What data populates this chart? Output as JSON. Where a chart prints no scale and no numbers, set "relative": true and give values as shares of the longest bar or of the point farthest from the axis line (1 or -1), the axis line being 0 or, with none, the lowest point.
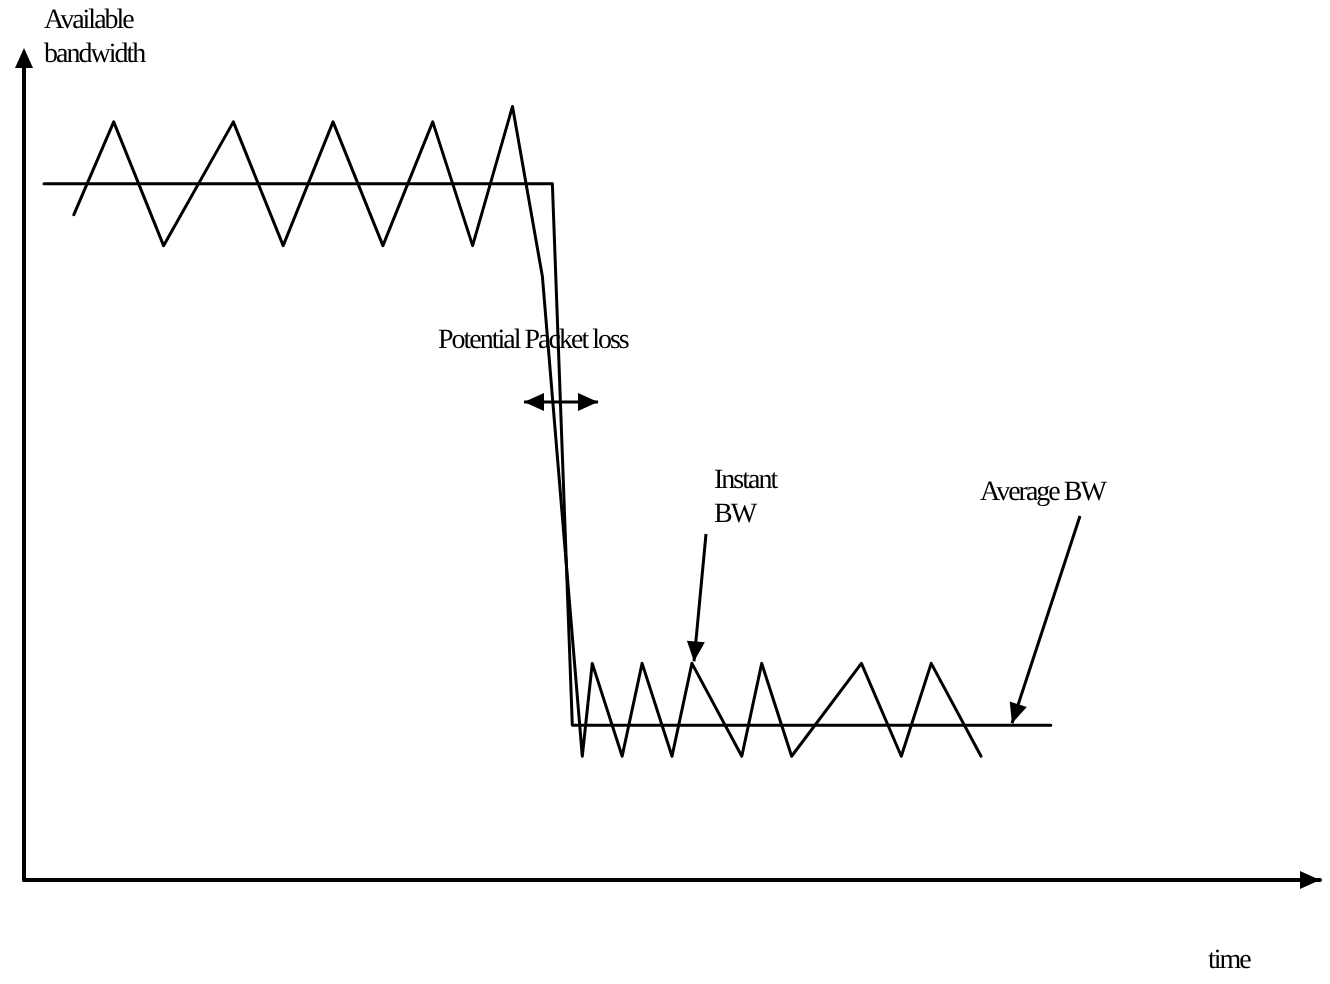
{
  "chart_data": {
    "type": "line",
    "relative": true,
    "xlabel": "time",
    "ylabel": "Available bandwidth",
    "annotations": [
      "Potential Packet loss",
      "Instant BW",
      "Average BW"
    ],
    "categories": [
      null,
      null,
      null,
      null,
      null,
      null,
      null,
      null,
      null,
      null,
      null,
      null,
      null,
      null,
      null,
      null,
      null,
      null,
      null,
      null,
      null,
      null,
      null,
      null,
      null,
      null,
      null,
      null,
      null,
      null,
      null,
      null,
      null,
      null,
      null,
      null,
      null,
      null,
      null,
      null,
      null,
      null,
      null,
      null,
      null,
      null,
      null,
      null,
      null,
      null,
      null,
      null,
      null,
      null,
      null,
      null,
      null,
      null,
      null,
      null,
      null,
      null,
      null,
      null,
      null,
      null,
      null,
      null,
      null,
      null,
      null,
      null,
      null,
      null,
      null,
      null,
      null,
      null,
      null,
      null,
      null,
      null,
      null,
      null,
      null,
      null,
      null,
      null,
      null,
      null,
      null,
      null,
      null,
      null,
      null,
      null,
      null,
      null,
      null,
      null,
      null,
      null,
      null,
      null,
      null,
      null,
      null,
      null,
      null,
      null,
      null,
      null,
      null,
      null,
      null,
      null,
      null,
      null,
      null,
      null,
      null,
      null,
      null,
      null,
      null,
      null,
      null,
      null,
      null,
      null,
      null
    ],
    "series": [
      {
        "color": "#000000",
        "values": [
          null,
          null,
          null,
          null,
          null,
          0.86,
          null,
          null,
          null,
          0.98,
          null,
          null,
          null,
          null,
          0.82,
          null,
          null,
          null,
          null,
          null,
          null,
          0.98,
          null,
          null,
          null,
          null,
          0.82,
          null,
          null,
          null,
          null,
          0.98,
          null,
          null,
          null,
          null,
          0.82,
          null,
          null,
          null,
          null,
          0.98,
          null,
          null,
          null,
          0.82,
          null,
          null,
          null,
          1,
          null,
          null,
          0.78,
          null,
          null,
          null,
          0.16,
          0.28,
          null,
          null,
          0.16,
          null,
          0.28,
          null,
          null,
          0.16,
          null,
          0.28,
          null,
          null,
          null,
          null,
          0.16,
          null,
          0.28,
          null,
          null,
          0.16,
          null,
          null,
          null,
          null,
          null,
          null,
          0.28,
          null,
          null,
          null,
          0.16,
          null,
          null,
          0.28,
          null,
          null,
          null,
          null,
          0.16,
          null,
          null,
          null,
          null,
          null,
          null,
          null,
          null,
          null,
          null,
          null,
          null,
          null,
          null,
          null,
          null,
          null,
          null,
          null,
          null,
          null,
          null,
          null,
          null,
          null,
          null,
          null,
          null,
          null,
          null,
          null,
          null,
          null,
          null
        ]
      },
      {
        "color": "#000000",
        "values": [
          null,
          null,
          0.9,
          null,
          null,
          null,
          null,
          null,
          null,
          null,
          null,
          null,
          null,
          null,
          null,
          null,
          null,
          null,
          null,
          null,
          null,
          null,
          null,
          null,
          null,
          null,
          null,
          null,
          null,
          null,
          null,
          null,
          null,
          null,
          null,
          null,
          null,
          null,
          null,
          null,
          null,
          null,
          null,
          null,
          null,
          null,
          null,
          null,
          null,
          null,
          null,
          null,
          null,
          0.9,
          null,
          0.2,
          null,
          null,
          null,
          null,
          null,
          null,
          null,
          null,
          null,
          null,
          null,
          null,
          null,
          null,
          null,
          null,
          null,
          null,
          null,
          null,
          null,
          null,
          null,
          null,
          null,
          null,
          null,
          null,
          null,
          null,
          null,
          null,
          null,
          null,
          null,
          null,
          null,
          null,
          null,
          null,
          null,
          null,
          null,
          null,
          null,
          null,
          null,
          0.2,
          null,
          null,
          null,
          null,
          null,
          null,
          null,
          null,
          null,
          null,
          null,
          null,
          null,
          null,
          null,
          null,
          null,
          null,
          null,
          null,
          null,
          null,
          null,
          null,
          null,
          null,
          null
        ]
      }
    ]
  }
}
